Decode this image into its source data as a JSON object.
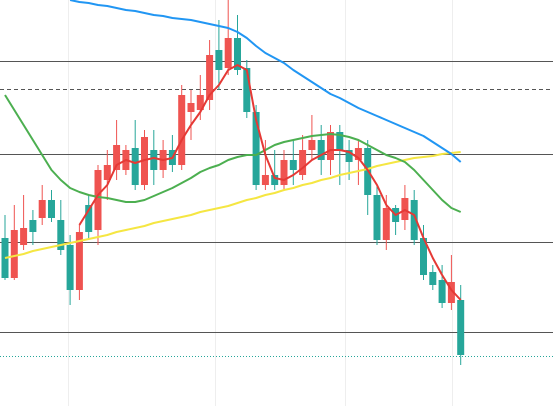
{
  "chart_data": {
    "type": "candlestick",
    "ylim": [
      0,
      406
    ],
    "up_color": "#ef5350",
    "down_color": "#26a69a",
    "open": [
      168,
      128,
      161,
      186,
      188,
      206,
      186,
      161,
      116,
      201,
      176,
      226,
      236,
      236,
      258,
      221,
      256,
      236,
      256,
      241,
      294,
      296,
      306,
      356,
      338,
      368,
      338,
      294,
      221,
      231,
      221,
      246,
      231,
      256,
      266,
      246,
      274,
      256,
      246,
      258,
      211,
      166,
      198,
      186,
      206,
      168,
      134,
      126,
      103,
      106
    ],
    "high": [
      191,
      201,
      211,
      196,
      221,
      216,
      206,
      171,
      181,
      211,
      241,
      256,
      286,
      261,
      286,
      276,
      276,
      266,
      271,
      321,
      316,
      331,
      366,
      386,
      406,
      391,
      346,
      301,
      266,
      256,
      256,
      266,
      271,
      291,
      281,
      281,
      281,
      266,
      266,
      266,
      221,
      211,
      201,
      221,
      216,
      181,
      141,
      141,
      151,
      121
    ],
    "low": [
      126,
      126,
      156,
      161,
      181,
      184,
      151,
      101,
      106,
      166,
      161,
      206,
      226,
      231,
      216,
      216,
      221,
      228,
      234,
      236,
      266,
      286,
      296,
      316,
      331,
      331,
      288,
      216,
      216,
      216,
      216,
      221,
      226,
      246,
      231,
      231,
      221,
      226,
      221,
      191,
      161,
      156,
      171,
      176,
      161,
      126,
      116,
      98,
      96,
      41
    ],
    "close": [
      128,
      176,
      178,
      174,
      206,
      188,
      156,
      116,
      174,
      174,
      236,
      241,
      261,
      256,
      221,
      269,
      236,
      256,
      241,
      311,
      303,
      311,
      351,
      336,
      368,
      336,
      294,
      221,
      231,
      221,
      246,
      236,
      256,
      266,
      246,
      274,
      256,
      244,
      258,
      211,
      166,
      198,
      184,
      208,
      166,
      131,
      121,
      103,
      124,
      51
    ],
    "series": [
      {
        "color": "#f5e642",
        "values": [
          148,
          150,
          152,
          155,
          157,
          159,
          161,
          163,
          165,
          167,
          169,
          171,
          174,
          176,
          178,
          180,
          183,
          185,
          187,
          189,
          191,
          194,
          196,
          198,
          200,
          203,
          206,
          208,
          211,
          213,
          216,
          218,
          221,
          223,
          226,
          228,
          231,
          233,
          235,
          237,
          240,
          242,
          244,
          246,
          248,
          249,
          250,
          252,
          253,
          254
        ]
      },
      {
        "color": "#4caf50",
        "values": [
          311,
          296,
          281,
          266,
          251,
          236,
          226,
          218,
          214,
          211,
          209,
          208,
          206,
          204,
          204,
          206,
          210,
          214,
          218,
          223,
          228,
          234,
          238,
          241,
          246,
          249,
          251,
          251,
          256,
          261,
          264,
          266,
          268,
          270,
          271,
          272,
          271,
          269,
          266,
          261,
          256,
          251,
          248,
          244,
          236,
          226,
          216,
          206,
          198,
          194
        ]
      },
      {
        "color": "#2196f3",
        "values": [
          null,
          null,
          null,
          null,
          null,
          null,
          null,
          406,
          404,
          403,
          401,
          400,
          398,
          396,
          395,
          393,
          391,
          390,
          388,
          387,
          386,
          384,
          382,
          380,
          378,
          374,
          368,
          360,
          353,
          348,
          343,
          336,
          330,
          324,
          318,
          312,
          308,
          303,
          298,
          294,
          290,
          286,
          282,
          278,
          274,
          270,
          264,
          258,
          252,
          244
        ]
      },
      {
        "color": "#e53935",
        "values": [
          null,
          null,
          null,
          null,
          null,
          null,
          null,
          null,
          181,
          196,
          211,
          221,
          241,
          246,
          243,
          246,
          248,
          246,
          248,
          266,
          281,
          294,
          311,
          321,
          336,
          341,
          336,
          286,
          251,
          228,
          226,
          231,
          238,
          246,
          251,
          256,
          256,
          254,
          248,
          236,
          221,
          201,
          191,
          196,
          191,
          168,
          148,
          131,
          116,
          106
        ]
      }
    ],
    "levels": [
      {
        "value": 345,
        "color": "#555555",
        "style": "solid"
      },
      {
        "value": 317,
        "color": "#555555",
        "style": "dashed"
      },
      {
        "value": 252,
        "color": "#555555",
        "style": "solid"
      },
      {
        "value": 164,
        "color": "#555555",
        "style": "solid"
      },
      {
        "value": 74,
        "color": "#555555",
        "style": "solid"
      },
      {
        "value": 50,
        "color": "#26a69a",
        "style": "dotted"
      }
    ]
  }
}
